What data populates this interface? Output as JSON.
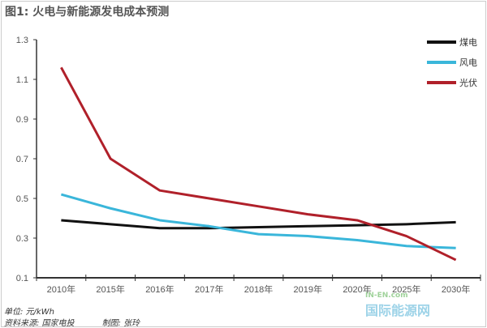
{
  "chart_data": {
    "type": "line",
    "title": "图1: 火电与新能源发电成本预测",
    "categories": [
      "2010年",
      "2015年",
      "2016年",
      "2017年",
      "2018年",
      "2019年",
      "2020年",
      "2025年",
      "2030年"
    ],
    "ylim": [
      0.1,
      1.3
    ],
    "yticks": [
      "1.3",
      "1.1",
      "0.9",
      "0.7",
      "0.5",
      "0.3",
      "0.1"
    ],
    "grid": false,
    "legend": "top-right",
    "series": [
      {
        "name": "煤电",
        "color": "#111111",
        "values": [
          0.39,
          0.37,
          0.35,
          0.35,
          0.355,
          0.36,
          0.365,
          0.37,
          0.38
        ]
      },
      {
        "name": "风电",
        "color": "#3ab6da",
        "values": [
          0.52,
          0.45,
          0.39,
          0.36,
          0.32,
          0.31,
          0.29,
          0.26,
          0.25
        ]
      },
      {
        "name": "光伏",
        "color": "#b0202a",
        "values": [
          1.16,
          0.7,
          0.54,
          0.5,
          0.46,
          0.42,
          0.39,
          0.31,
          0.19
        ]
      }
    ]
  },
  "notes": {
    "unit": "单位: 元/kWh",
    "source": "资料来源: 国家电投",
    "author": "制图: 张玲"
  },
  "watermark": {
    "top": "IN-EN.com",
    "bottom": "国际能源网"
  }
}
